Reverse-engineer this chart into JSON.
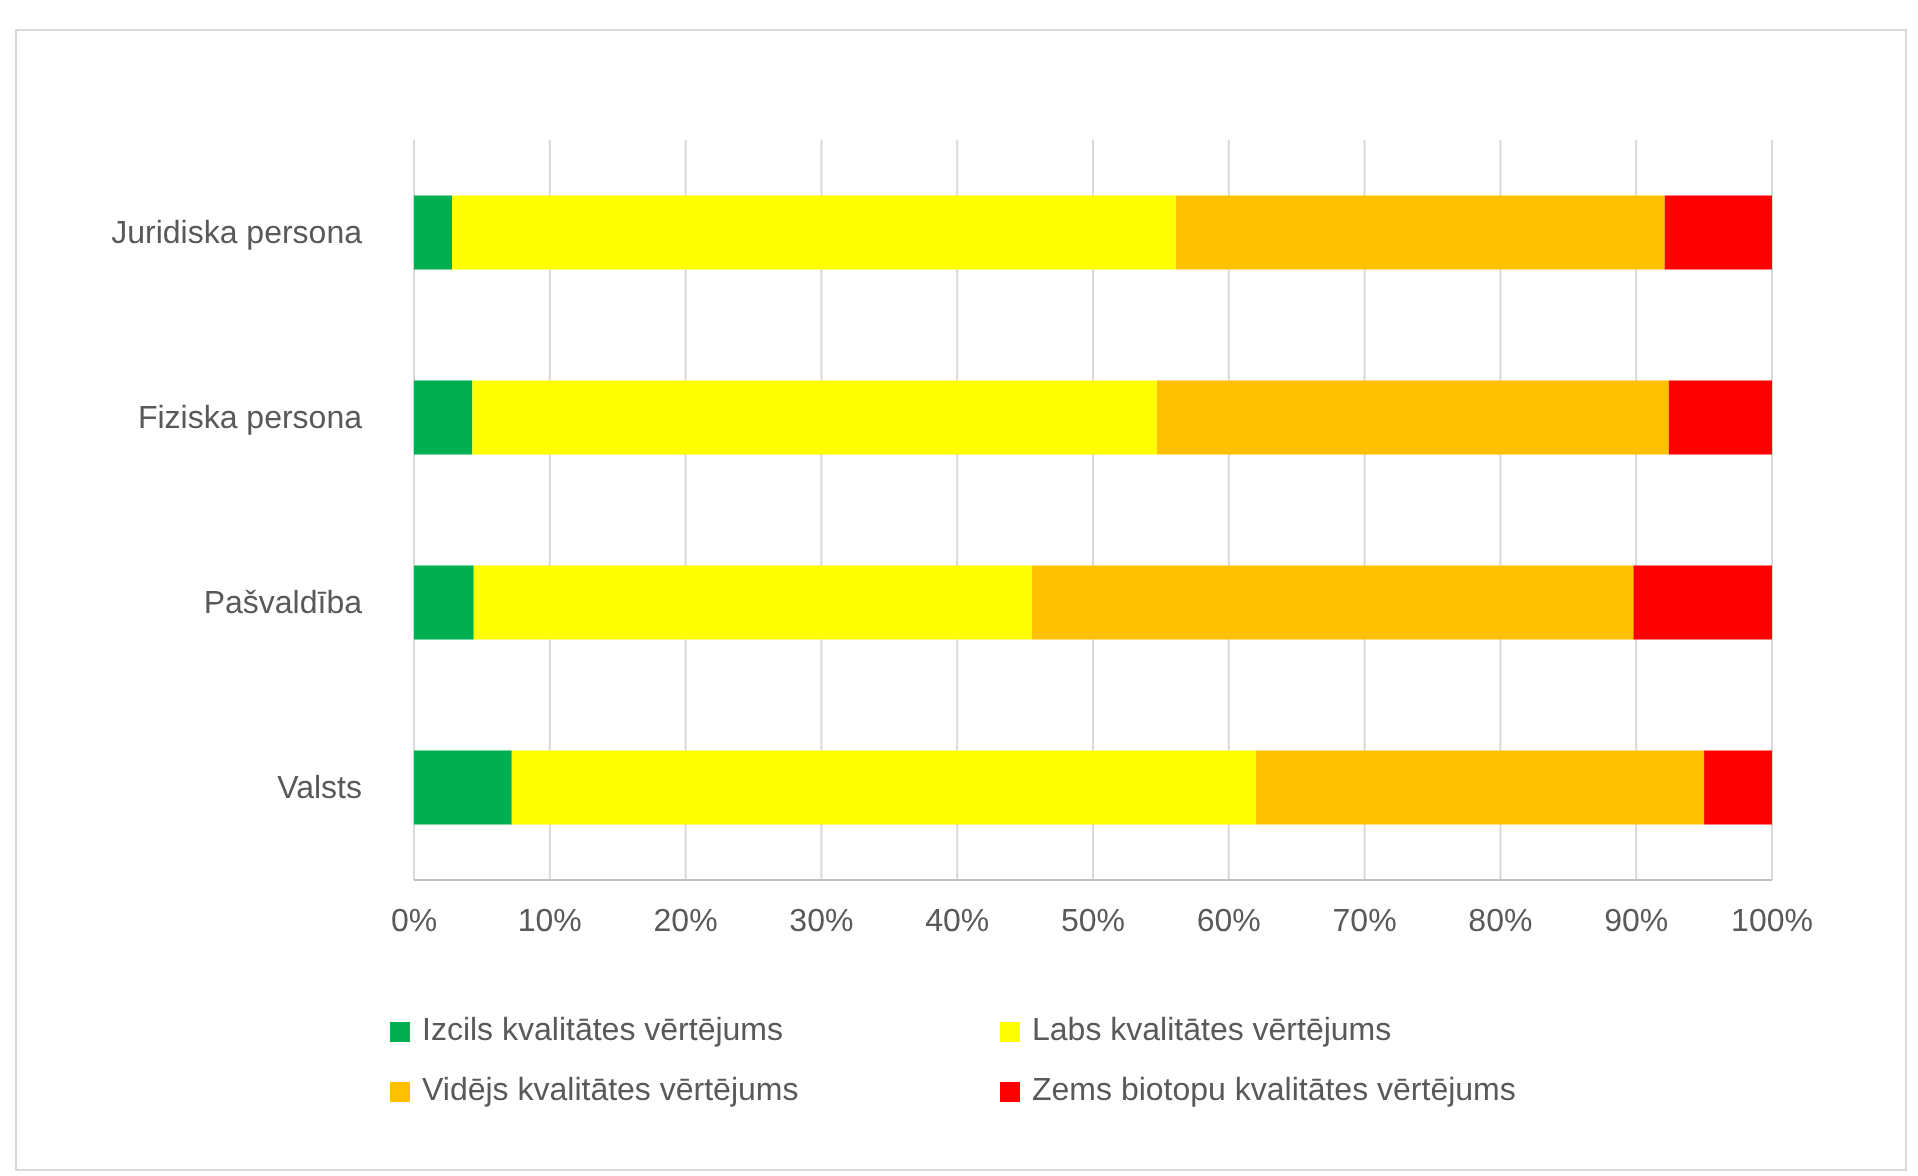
{
  "chart_data": {
    "type": "bar",
    "orientation": "horizontal",
    "stacked": true,
    "categories": [
      "Juridiska persona",
      "Fiziska persona",
      "Pašvaldība",
      "Valsts"
    ],
    "series": [
      {
        "name": "Izcils kvalitātes vērtējums",
        "color": "#00b050",
        "values": [
          2.8,
          4.3,
          4.4,
          7.2
        ]
      },
      {
        "name": "Labs kvalitātes vērtējums",
        "color": "#ffff00",
        "values": [
          53.3,
          50.4,
          41.1,
          54.8
        ]
      },
      {
        "name": "Vidējs kvalitātes vērtējums",
        "color": "#ffc000",
        "values": [
          36.0,
          37.7,
          44.3,
          33.0
        ]
      },
      {
        "name": "Zems biotopu kvalitātes vērtējums",
        "color": "#ff0000",
        "values": [
          7.9,
          7.6,
          10.2,
          5.0
        ]
      }
    ],
    "xlim": [
      0,
      100
    ],
    "xticks": [
      {
        "value": 0,
        "label": "0%"
      },
      {
        "value": 10,
        "label": "10%"
      },
      {
        "value": 20,
        "label": "20%"
      },
      {
        "value": 30,
        "label": "30%"
      },
      {
        "value": 40,
        "label": "40%"
      },
      {
        "value": 50,
        "label": "50%"
      },
      {
        "value": 60,
        "label": "60%"
      },
      {
        "value": 70,
        "label": "70%"
      },
      {
        "value": 80,
        "label": "80%"
      },
      {
        "value": 90,
        "label": "90%"
      },
      {
        "value": 100,
        "label": "100%"
      }
    ],
    "grid": "x",
    "legend": "bottom"
  }
}
